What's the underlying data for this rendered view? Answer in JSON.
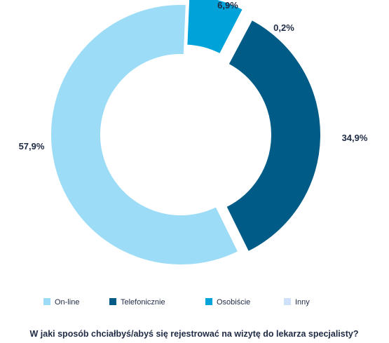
{
  "chart_data": {
    "type": "pie",
    "variant": "donut",
    "title": "W jaki sposób chciałbyś/abyś się rejestrować na wizytę do lekarza specjalisty?",
    "categories": [
      "On-line",
      "Telefonicznie",
      "Osobiście",
      "Inny"
    ],
    "values": [
      57.9,
      34.9,
      6.9,
      0.2
    ],
    "value_labels": [
      "57,9%",
      "34,9%",
      "6,9%",
      "0,2%"
    ],
    "colors": [
      "#9ddcf7",
      "#005c87",
      "#00a3d9",
      "#cfe0fb"
    ],
    "exploded": [
      false,
      true,
      true,
      true
    ],
    "legend_position": "bottom"
  }
}
